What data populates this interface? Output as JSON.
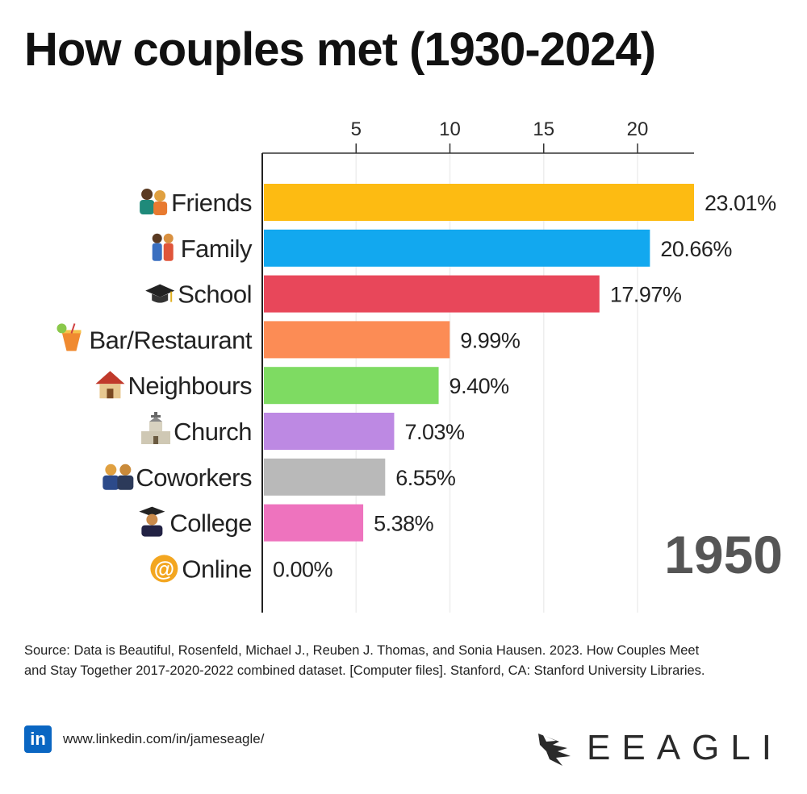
{
  "title": "How couples met (1930-2024)",
  "year": "1950",
  "source": "Source: Data is Beautiful, Rosenfeld, Michael J., Reuben J. Thomas, and Sonia Hausen. 2023. How Couples Meet and Stay Together 2017-2020-2022 combined dataset. [Computer files]. Stanford, CA: Stanford University Libraries.",
  "footer": {
    "linkedin_icon": "in",
    "linkedin_url": "www.linkedin.com/in/jameseagle/",
    "brand": "EEAGLI"
  },
  "chart_data": {
    "type": "bar",
    "orientation": "horizontal",
    "title": "How couples met (1930-2024)",
    "xlim": [
      0,
      23.01
    ],
    "xticks": [
      5,
      10,
      15,
      20
    ],
    "tick_position": "top",
    "grid": true,
    "categories": [
      "Friends",
      "Family",
      "School",
      "Bar/Restaurant",
      "Neighbours",
      "Church",
      "Coworkers",
      "College",
      "Online"
    ],
    "icons": [
      "people-icon",
      "family-icon",
      "graduation-cap-icon",
      "cocktail-icon",
      "house-icon",
      "church-icon",
      "coworkers-icon",
      "graduate-icon",
      "at-sign-icon"
    ],
    "values": [
      23.01,
      20.66,
      17.97,
      9.99,
      9.4,
      7.03,
      6.55,
      5.38,
      0.0
    ],
    "value_labels": [
      "23.01%",
      "20.66%",
      "17.97%",
      "9.99%",
      "9.40%",
      "7.03%",
      "6.55%",
      "5.38%",
      "0.00%"
    ],
    "colors": [
      "#fdbb12",
      "#12a8ef",
      "#e8475a",
      "#fc8c55",
      "#7edb62",
      "#bd89e3",
      "#b9b9b9",
      "#ee73be",
      "#a0a0a0"
    ],
    "year": "1950"
  }
}
